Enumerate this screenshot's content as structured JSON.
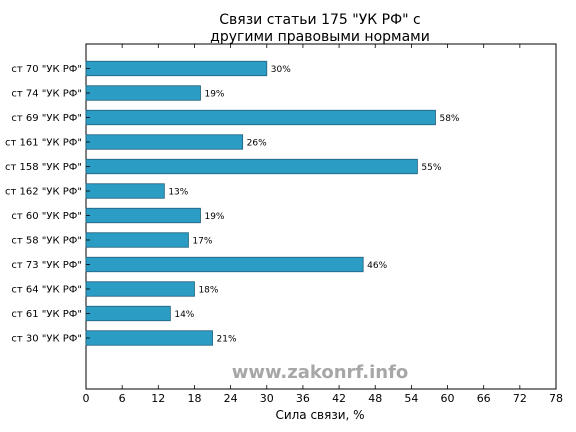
{
  "chart_data": {
    "type": "bar",
    "orientation": "horizontal",
    "title_lines": [
      "Связи статьи 175 \"УК РФ\" с",
      "другими правовыми нормами"
    ],
    "xlabel": "Сила связи, %",
    "ylabel": "",
    "xlim": [
      0,
      78
    ],
    "xticks": [
      0,
      6,
      12,
      18,
      24,
      30,
      36,
      42,
      48,
      54,
      60,
      66,
      72,
      78
    ],
    "categories": [
      "ст 70 \"УК РФ\"",
      "ст 74 \"УК РФ\"",
      "ст 69 \"УК РФ\"",
      "ст 161 \"УК РФ\"",
      "ст 158 \"УК РФ\"",
      "ст 162 \"УК РФ\"",
      "ст 60 \"УК РФ\"",
      "ст 58 \"УК РФ\"",
      "ст 73 \"УК РФ\"",
      "ст 64 \"УК РФ\"",
      "ст 61 \"УК РФ\"",
      "ст 30 \"УК РФ\""
    ],
    "values": [
      30,
      19,
      58,
      26,
      55,
      13,
      19,
      17,
      46,
      18,
      14,
      21
    ],
    "value_labels": [
      "30%",
      "19%",
      "58%",
      "26%",
      "55%",
      "13%",
      "19%",
      "17%",
      "46%",
      "18%",
      "14%",
      "21%"
    ],
    "bar_color": "#2b9cc3",
    "grid": false,
    "watermark": "www.zakonrf.info"
  }
}
